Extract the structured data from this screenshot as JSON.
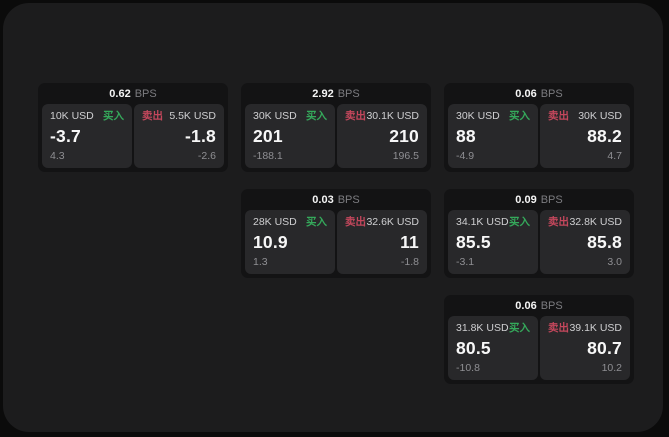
{
  "labels": {
    "bps_unit": "BPS",
    "buy": "买入",
    "sell": "卖出"
  },
  "colors": {
    "surround_black": "#0b0b0b",
    "app_background": "#1c1c1d",
    "card_background": "#131314",
    "panel_background": "#28282a",
    "buy_green": "#35a95b",
    "sell_red": "#c4475c",
    "primary_text": "#f5f5f5",
    "muted_text": "#8f8f93"
  },
  "cards": [
    {
      "bps": "0.62",
      "buy": {
        "size": "10K USD",
        "price": "-3.7",
        "delta": "4.3"
      },
      "sell": {
        "size": "5.5K USD",
        "price": "-1.8",
        "delta": "-2.6"
      }
    },
    {
      "bps": "2.92",
      "buy": {
        "size": "30K USD",
        "price": "201",
        "delta": "-188.1"
      },
      "sell": {
        "size": "30.1K USD",
        "price": "210",
        "delta": "196.5"
      }
    },
    {
      "bps": "0.06",
      "buy": {
        "size": "30K USD",
        "price": "88",
        "delta": "-4.9"
      },
      "sell": {
        "size": "30K USD",
        "price": "88.2",
        "delta": "4.7"
      }
    },
    {
      "bps": "0.03",
      "buy": {
        "size": "28K USD",
        "price": "10.9",
        "delta": "1.3"
      },
      "sell": {
        "size": "32.6K USD",
        "price": "11",
        "delta": "-1.8"
      }
    },
    {
      "bps": "0.09",
      "buy": {
        "size": "34.1K USD",
        "price": "85.5",
        "delta": "-3.1"
      },
      "sell": {
        "size": "32.8K USD",
        "price": "85.8",
        "delta": "3.0"
      }
    },
    {
      "bps": "0.06",
      "buy": {
        "size": "31.8K USD",
        "price": "80.5",
        "delta": "-10.8"
      },
      "sell": {
        "size": "39.1K USD",
        "price": "80.7",
        "delta": "10.2"
      }
    }
  ]
}
